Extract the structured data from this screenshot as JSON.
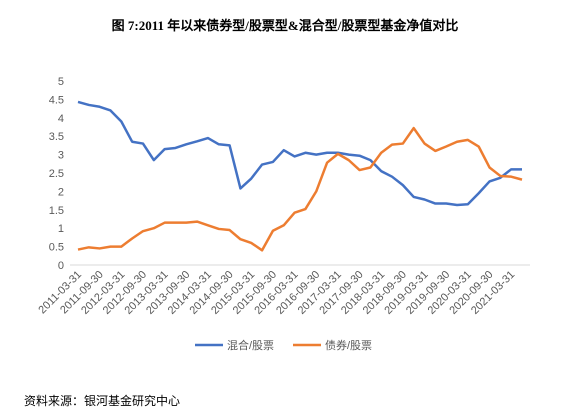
{
  "chart_data": {
    "type": "line",
    "title": "图 7:2011 年以来债券型/股票型&混合型/股票型基金净值对比",
    "source": "资料来源：银河基金研究中心",
    "categories": [
      "2011-03-31",
      null,
      "2011-09-30",
      null,
      "2012-03-31",
      null,
      "2012-09-30",
      null,
      "2013-03-31",
      null,
      "2013-09-30",
      null,
      "2014-03-31",
      null,
      "2014-09-30",
      null,
      "2015-03-31",
      null,
      "2015-09-30",
      null,
      "2016-03-31",
      null,
      "2016-09-30",
      null,
      "2017-03-31",
      null,
      "2017-09-30",
      null,
      "2018-03-31",
      null,
      "2018-09-30",
      null,
      "2019-03-31",
      null,
      "2019-09-30",
      null,
      "2020-03-31",
      null,
      "2020-09-30",
      null,
      "2021-03-31",
      null
    ],
    "series": [
      {
        "name": "混合/股票",
        "color": "#4472c4",
        "values": [
          4.43,
          4.35,
          4.3,
          4.2,
          3.9,
          3.35,
          3.3,
          2.85,
          3.15,
          3.18,
          3.28,
          3.36,
          3.45,
          3.28,
          3.25,
          2.08,
          2.35,
          2.73,
          2.8,
          3.12,
          2.95,
          3.05,
          3.0,
          3.05,
          3.05,
          3.0,
          2.97,
          2.85,
          2.55,
          2.4,
          2.17,
          1.85,
          1.78,
          1.67,
          1.67,
          1.63,
          1.65,
          1.95,
          2.27,
          2.37,
          2.6,
          2.6
        ]
      },
      {
        "name": "债券/股票",
        "color": "#ed7d31",
        "values": [
          0.42,
          0.48,
          0.45,
          0.5,
          0.5,
          0.72,
          0.92,
          1.0,
          1.15,
          1.15,
          1.15,
          1.18,
          1.08,
          0.98,
          0.95,
          0.7,
          0.6,
          0.4,
          0.93,
          1.08,
          1.42,
          1.52,
          2.0,
          2.78,
          3.02,
          2.85,
          2.58,
          2.65,
          3.05,
          3.27,
          3.3,
          3.72,
          3.3,
          3.1,
          3.22,
          3.35,
          3.4,
          3.22,
          2.65,
          2.42,
          2.4,
          2.32
        ]
      }
    ],
    "ylim": [
      0,
      5
    ],
    "yticks": [
      0,
      0.5,
      1,
      1.5,
      2,
      2.5,
      3,
      3.5,
      4,
      4.5,
      5
    ],
    "grid": false,
    "legend": "bottom"
  }
}
